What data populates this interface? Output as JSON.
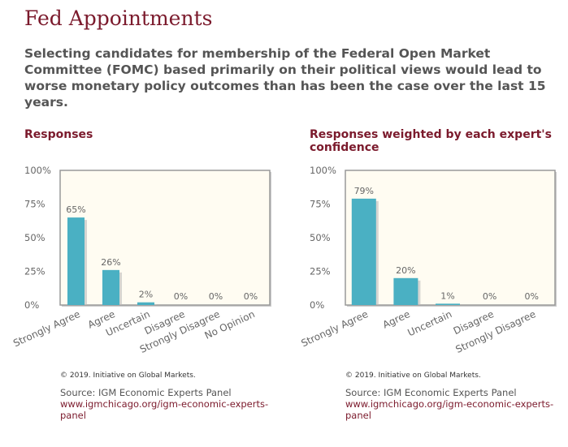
{
  "title": "Fed Appointments",
  "question": "Selecting candidates for membership of the Federal Open Market Committee (FOMC) based primarily on their political views would lead to worse monetary policy outcomes than has been the case over the last 15 years.",
  "colors": {
    "bar": "#4ab0c3",
    "accent": "#7b1a2c",
    "plot_bg": "#fffcf2"
  },
  "chart_data": [
    {
      "type": "bar",
      "title": "Responses",
      "categories": [
        "Strongly Agree",
        "Agree",
        "Uncertain",
        "Disagree",
        "Strongly Disagree",
        "No Opinion"
      ],
      "values": [
        65,
        26,
        2,
        0,
        0,
        0
      ],
      "value_labels": [
        "65%",
        "26%",
        "2%",
        "0%",
        "0%",
        "0%"
      ],
      "yticks": [
        "0%",
        "25%",
        "50%",
        "75%",
        "100%"
      ],
      "ylim": [
        0,
        100
      ],
      "xlabel": "",
      "ylabel": ""
    },
    {
      "type": "bar",
      "title": "Responses weighted by each expert's confidence",
      "categories": [
        "Strongly Agree",
        "Agree",
        "Uncertain",
        "Disagree",
        "Strongly Disagree"
      ],
      "values": [
        79,
        20,
        1,
        0,
        0
      ],
      "value_labels": [
        "79%",
        "20%",
        "1%",
        "0%",
        "0%"
      ],
      "yticks": [
        "0%",
        "25%",
        "50%",
        "75%",
        "100%"
      ],
      "ylim": [
        0,
        100
      ],
      "xlabel": "",
      "ylabel": ""
    }
  ],
  "footer": {
    "copyright": "© 2019. Initiative on Global Markets.",
    "source": "Source: IGM Economic Experts Panel",
    "link": "www.igmchicago.org/igm-economic-experts-panel"
  }
}
